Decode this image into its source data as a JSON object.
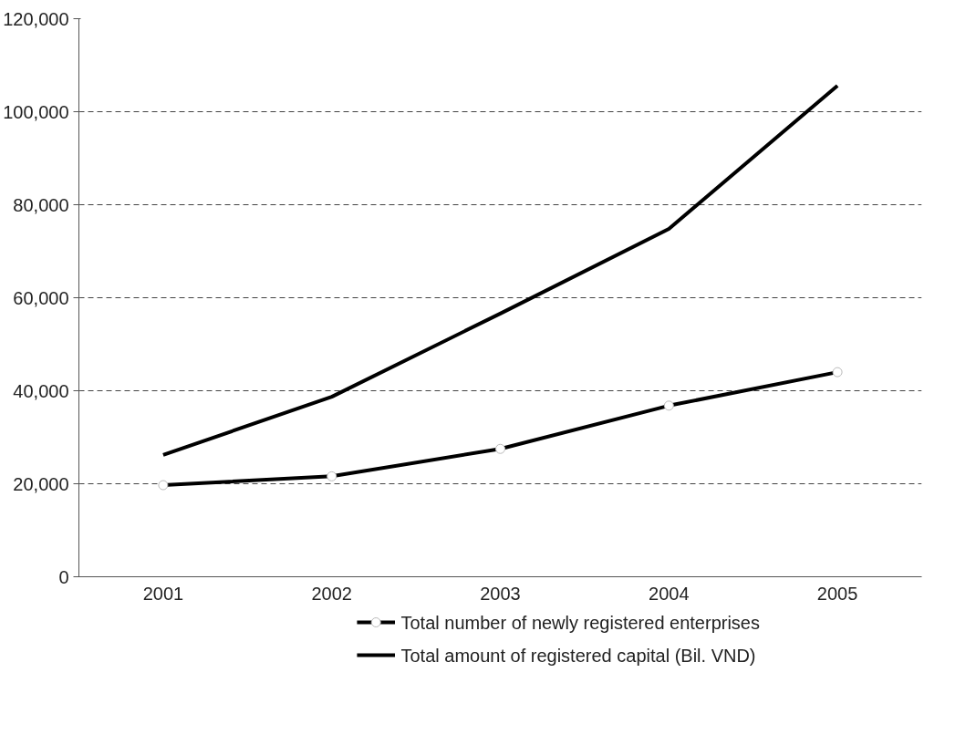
{
  "chart_data": {
    "type": "line",
    "categories": [
      "2001",
      "2002",
      "2003",
      "2004",
      "2005"
    ],
    "series": [
      {
        "name": "Total number of newly registered enterprises",
        "color": "#000000",
        "marker": "circle",
        "values": [
          19700,
          21600,
          27500,
          36800,
          44000
        ]
      },
      {
        "name": "Total amount of registered capital (Bil. VND)",
        "color": "#000000",
        "marker": "none",
        "values": [
          26200,
          38700,
          56600,
          74800,
          105600
        ]
      }
    ],
    "ylim": [
      0,
      120000
    ],
    "yticks": [
      {
        "value": 0,
        "label": "0"
      },
      {
        "value": 20000,
        "label": "20,000"
      },
      {
        "value": 40000,
        "label": "40,000"
      },
      {
        "value": 60000,
        "label": "60,000"
      },
      {
        "value": 80000,
        "label": "80,000"
      },
      {
        "value": 100000,
        "label": "100,000"
      },
      {
        "value": 120000,
        "label": "120,000"
      }
    ],
    "grid": "y",
    "legend": "bottom",
    "line_style": "solid"
  }
}
